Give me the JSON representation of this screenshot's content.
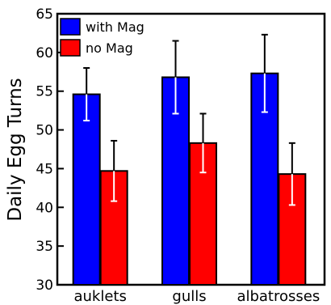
{
  "chart_data": {
    "type": "bar",
    "title": "",
    "xlabel": "",
    "ylabel": "Daily Egg Turns",
    "ylim": [
      30,
      65
    ],
    "yticks": [
      30,
      35,
      40,
      45,
      50,
      55,
      60,
      65
    ],
    "categories": [
      "auklets",
      "gulls",
      "albatrosses"
    ],
    "legend_position": "top-left",
    "grid": false,
    "series": [
      {
        "name": "with Mag",
        "color": "#0000ff",
        "values": [
          54.6,
          56.8,
          57.3
        ],
        "errors": [
          3.4,
          4.7,
          5.0
        ]
      },
      {
        "name": "no Mag",
        "color": "#ff0000",
        "values": [
          44.7,
          48.3,
          44.3
        ],
        "errors": [
          3.9,
          3.8,
          4.0
        ]
      }
    ]
  }
}
